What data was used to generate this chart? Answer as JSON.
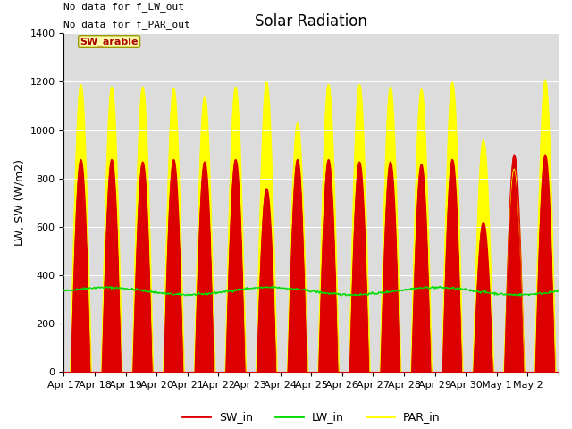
{
  "title": "Solar Radiation",
  "ylabel": "LW, SW (W/m2)",
  "annotations": [
    "No data for f_SW_out",
    "No data for f_LW_out",
    "No data for f_PAR_out"
  ],
  "legend_label": "SW_arable",
  "ylim": [
    0,
    1400
  ],
  "yticks": [
    0,
    200,
    400,
    600,
    800,
    1000,
    1200,
    1400
  ],
  "xtick_labels": [
    "Apr 17",
    "Apr 18",
    "Apr 19",
    "Apr 20",
    "Apr 21",
    "Apr 22",
    "Apr 23",
    "Apr 24",
    "Apr 25",
    "Apr 26",
    "Apr 27",
    "Apr 28",
    "Apr 29",
    "Apr 30",
    "May 1",
    "May 2"
  ],
  "sw_color": "#dd0000",
  "lw_color": "#00dd00",
  "par_color": "#ffff00",
  "background_color": "#dcdcdc",
  "n_days": 16,
  "sw_peaks": [
    880,
    880,
    870,
    880,
    870,
    880,
    760,
    880,
    880,
    870,
    870,
    860,
    880,
    620,
    900,
    900
  ],
  "par_peaks": [
    1190,
    1180,
    1180,
    1175,
    1140,
    1180,
    1200,
    1030,
    1190,
    1190,
    1180,
    1170,
    1200,
    960,
    840,
    1210
  ],
  "lw_base": 335,
  "fontsize_title": 12,
  "fontsize_axis": 9,
  "fontsize_annot": 8,
  "fontsize_tick": 8,
  "fontsize_legend": 9
}
